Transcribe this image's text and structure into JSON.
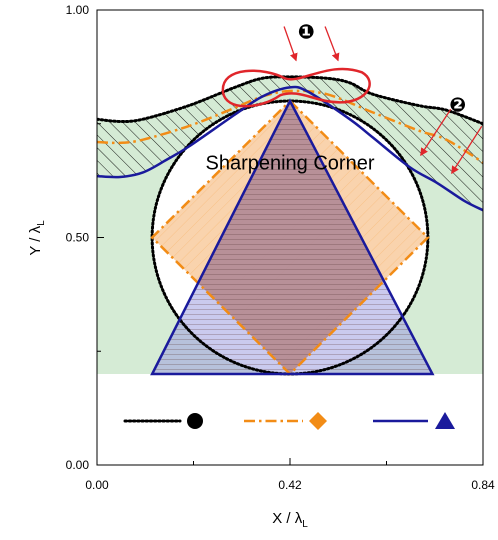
{
  "chart_data": {
    "type": "diagram",
    "xlabel": {
      "main": "X / λ",
      "sub": "L"
    },
    "ylabel": {
      "main": "Y / λ",
      "sub": "L"
    },
    "xlim": [
      0,
      0.84
    ],
    "ylim": [
      0,
      1.0
    ],
    "x_ticks": [
      {
        "value": 0.0,
        "label": "0.00"
      },
      {
        "value": 0.42,
        "label": "0.42"
      },
      {
        "value": 0.84,
        "label": "0.84"
      }
    ],
    "y_ticks": [
      {
        "value": 0.0,
        "label": "0.00"
      },
      {
        "value": 0.5,
        "label": "0.50"
      },
      {
        "value": 1.0,
        "label": "1.00"
      }
    ],
    "background_region": {
      "y_bottom": 0.2,
      "color": "#d5ebd5"
    },
    "circle": {
      "cx": 0.42,
      "cy": 0.5,
      "r": 0.3,
      "style": "dotted",
      "color": "#000000"
    },
    "diamond": {
      "points": [
        [
          0.42,
          0.8
        ],
        [
          0.72,
          0.5
        ],
        [
          0.42,
          0.2
        ],
        [
          0.12,
          0.5
        ]
      ],
      "style": "dash-dot",
      "color": "#f28c16",
      "fill": "#f9d3ad"
    },
    "triangle": {
      "points": [
        [
          0.42,
          0.8
        ],
        [
          0.73,
          0.2
        ],
        [
          0.12,
          0.2
        ]
      ],
      "style": "solid",
      "color": "#1a1a9c",
      "fill": "#9f9fe0"
    },
    "curves": [
      {
        "name": "dotted",
        "style": "dotted",
        "color": "#000000",
        "points": [
          [
            0.0,
            0.76
          ],
          [
            0.05,
            0.755
          ],
          [
            0.1,
            0.76
          ],
          [
            0.2,
            0.79
          ],
          [
            0.3,
            0.83
          ],
          [
            0.36,
            0.85
          ],
          [
            0.42,
            0.853
          ],
          [
            0.5,
            0.85
          ],
          [
            0.55,
            0.84
          ],
          [
            0.6,
            0.815
          ],
          [
            0.7,
            0.79
          ],
          [
            0.76,
            0.78
          ],
          [
            0.84,
            0.75
          ]
        ]
      },
      {
        "name": "dash-dot",
        "style": "dash-dot",
        "color": "#f28c16",
        "points": [
          [
            0.0,
            0.71
          ],
          [
            0.05,
            0.708
          ],
          [
            0.1,
            0.715
          ],
          [
            0.2,
            0.745
          ],
          [
            0.3,
            0.785
          ],
          [
            0.36,
            0.81
          ],
          [
            0.42,
            0.822
          ],
          [
            0.5,
            0.815
          ],
          [
            0.6,
            0.775
          ],
          [
            0.7,
            0.735
          ],
          [
            0.76,
            0.715
          ],
          [
            0.84,
            0.665
          ]
        ]
      },
      {
        "name": "solid",
        "style": "solid",
        "color": "#1a1a9c",
        "points": [
          [
            0.0,
            0.635
          ],
          [
            0.05,
            0.633
          ],
          [
            0.1,
            0.643
          ],
          [
            0.15,
            0.67
          ],
          [
            0.2,
            0.7
          ],
          [
            0.3,
            0.77
          ],
          [
            0.36,
            0.81
          ],
          [
            0.42,
            0.83
          ],
          [
            0.46,
            0.82
          ],
          [
            0.55,
            0.76
          ],
          [
            0.6,
            0.72
          ],
          [
            0.68,
            0.655
          ],
          [
            0.74,
            0.62
          ],
          [
            0.8,
            0.58
          ],
          [
            0.84,
            0.56
          ]
        ]
      }
    ],
    "highlight_loop": {
      "center": [
        0.42,
        0.83
      ],
      "color": "#e0262b"
    },
    "annotations": [
      {
        "text": "Sharpening Corner",
        "x": 0.42,
        "y": 0.65
      },
      {
        "text": "❶",
        "x": 0.455,
        "y": 0.955
      },
      {
        "text": "❷",
        "x": 0.785,
        "y": 0.795
      }
    ],
    "legend": {
      "placement": "bottom",
      "entries": [
        {
          "line": "dotted",
          "color": "#000000",
          "marker": "circle"
        },
        {
          "line": "dash-dot",
          "color": "#f28c16",
          "marker": "diamond"
        },
        {
          "line": "solid",
          "color": "#1a1a9c",
          "marker": "triangle"
        }
      ]
    }
  }
}
